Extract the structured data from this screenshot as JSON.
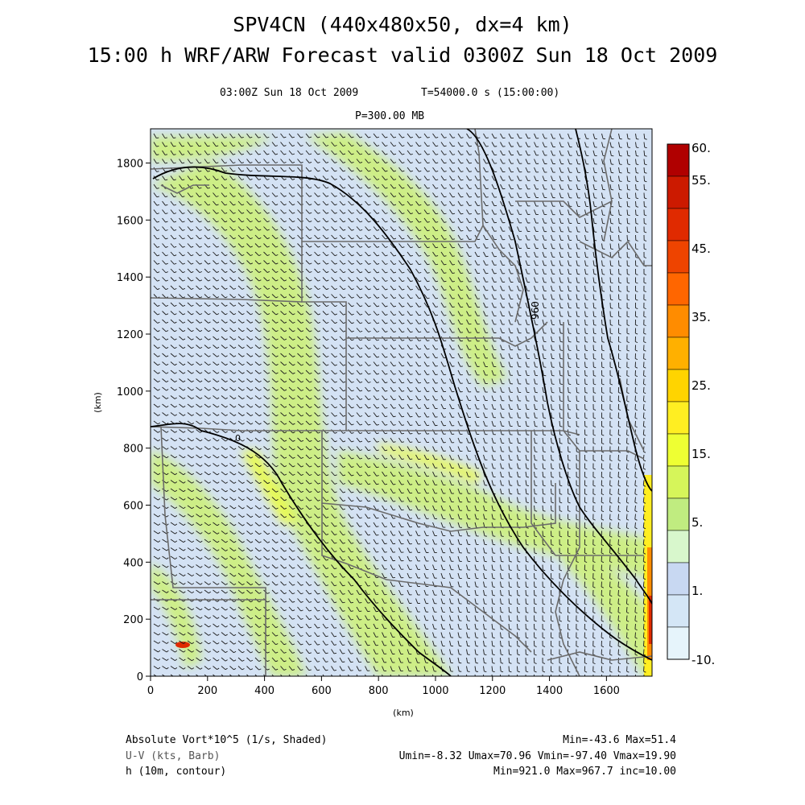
{
  "header": {
    "title_line1": "SPV4CN (440x480x50, dx=4 km)",
    "title_line2": "15:00 h WRF/ARW Forecast valid 0300Z Sun 18 Oct 2009",
    "valid_time": "03:00Z Sun 18 Oct 2009",
    "sim_time": "T=54000.0 s (15:00:00)",
    "pressure_level": "P=300.00 MB"
  },
  "axes": {
    "x_label": "(km)",
    "y_label": "(km)",
    "x_ticks": [
      "0",
      "200",
      "400",
      "600",
      "800",
      "1000",
      "1200",
      "1400",
      "1600"
    ],
    "y_ticks": [
      "0",
      "200",
      "400",
      "600",
      "800",
      "1000",
      "1200",
      "1400",
      "1600",
      "1800"
    ],
    "x_range": [
      0,
      1760
    ],
    "y_range": [
      0,
      1920
    ]
  },
  "colorbar": {
    "labels": [
      "60.",
      "55.",
      "45.",
      "35.",
      "25.",
      "15.",
      "5.",
      "1.",
      "-10."
    ],
    "colors": [
      "#b00000",
      "#cc1a00",
      "#e02a00",
      "#ee4400",
      "#ff6600",
      "#ff8c00",
      "#ffb000",
      "#ffd400",
      "#ffee22",
      "#eeff33",
      "#d6f55a",
      "#c0ec80",
      "#d8f7cc",
      "#c8d8f2",
      "#d4e6f6",
      "#e6f4fb"
    ]
  },
  "contour_label": "960",
  "contour_small_label": "0",
  "legend": {
    "field1": "Absolute Vort*10^5 (1/s, Shaded)",
    "field1_stats": "Min=-43.6 Max=51.4",
    "field2": "U-V (kts, Barb)",
    "field2_stats": "Umin=-8.32 Umax=70.96 Vmin=-97.40 Vmax=19.90",
    "field3": "h (10m, contour)",
    "field3_stats": "Min=921.0 Max=967.7 inc=10.00"
  },
  "colors": {
    "field_base": "#d4e2f4",
    "band_green": "#ccf07a",
    "band_yellow": "#e8fa50",
    "state_lines": "#6b6b6b",
    "contour": "#000000",
    "barb": "#1a1a1a"
  }
}
